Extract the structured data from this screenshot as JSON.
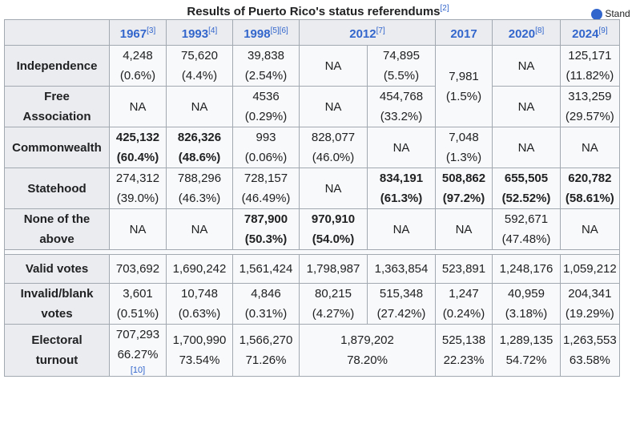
{
  "caption": {
    "title": "Results of Puerto Rico's status referendums",
    "ref": "[2]"
  },
  "side_button": {
    "label": "Stand"
  },
  "headers": [
    {
      "year": "1967",
      "ref": "[3]"
    },
    {
      "year": "1993",
      "ref": "[4]"
    },
    {
      "year": "1998",
      "ref": "[5][6]"
    },
    {
      "year": "2012",
      "ref": "[7]"
    },
    {
      "year": "2017",
      "ref": ""
    },
    {
      "year": "2020",
      "ref": "[8]"
    },
    {
      "year": "2024",
      "ref": "[9]"
    }
  ],
  "rows": {
    "independence": {
      "label": "Independence",
      "c1967": [
        "4,248",
        "(0.6%)"
      ],
      "c1993": [
        "75,620",
        "(4.4%)"
      ],
      "c1998": [
        "39,838",
        "(2.54%)"
      ],
      "c2012a": "NA",
      "c2012b": [
        "74,895",
        "(5.5%)"
      ],
      "c2017": [
        "7,981",
        "(1.5%)"
      ],
      "c2020": "NA",
      "c2024": [
        "125,171",
        "(11.82%)"
      ]
    },
    "free_association": {
      "label": [
        "Free",
        "Association"
      ],
      "c1967": "NA",
      "c1993": "NA",
      "c1998": [
        "4536",
        "(0.29%)"
      ],
      "c2012a": "NA",
      "c2012b": [
        "454,768",
        "(33.2%)"
      ],
      "c2020": "NA",
      "c2024": [
        "313,259",
        "(29.57%)"
      ]
    },
    "commonwealth": {
      "label": "Commonwealth",
      "c1967": [
        "425,132",
        "(60.4%)"
      ],
      "c1993": [
        "826,326",
        "(48.6%)"
      ],
      "c1998": [
        "993",
        "(0.06%)"
      ],
      "c2012a": [
        "828,077",
        "(46.0%)"
      ],
      "c2012b": "NA",
      "c2017": [
        "7,048",
        "(1.3%)"
      ],
      "c2020": "NA",
      "c2024": "NA"
    },
    "statehood": {
      "label": "Statehood",
      "c1967": [
        "274,312",
        "(39.0%)"
      ],
      "c1993": [
        "788,296",
        "(46.3%)"
      ],
      "c1998": [
        "728,157",
        "(46.49%)"
      ],
      "c2012a": "NA",
      "c2012b": [
        "834,191",
        "(61.3%)"
      ],
      "c2017": [
        "508,862",
        "(97.2%)"
      ],
      "c2020": [
        "655,505",
        "(52.52%)"
      ],
      "c2024": [
        "620,782",
        "(58.61%)"
      ]
    },
    "none": {
      "label": [
        "None of the",
        "above"
      ],
      "c1967": "NA",
      "c1993": "NA",
      "c1998": [
        "787,900",
        "(50.3%)"
      ],
      "c2012a": [
        "970,910",
        "(54.0%)"
      ],
      "c2012b": "NA",
      "c2017": "NA",
      "c2020": [
        "592,671",
        "(47.48%)"
      ],
      "c2024": "NA"
    },
    "valid": {
      "label": "Valid votes",
      "values": [
        "703,692",
        "1,690,242",
        "1,561,424",
        "1,798,987",
        "1,363,854",
        "523,891",
        "1,248,176",
        "1,059,212"
      ]
    },
    "invalid": {
      "label": [
        "Invalid/blank",
        "votes"
      ],
      "values": [
        [
          "3,601",
          "(0.51%)"
        ],
        [
          "10,748",
          "(0.63%)"
        ],
        [
          "4,846",
          "(0.31%)"
        ],
        [
          "80,215",
          "(4.27%)"
        ],
        [
          "515,348",
          "(27.42%)"
        ],
        [
          "1,247",
          "(0.24%)"
        ],
        [
          "40,959",
          "(3.18%)"
        ],
        [
          "204,341",
          "(19.29%)"
        ]
      ]
    },
    "turnout": {
      "label": [
        "Electoral",
        "turnout"
      ],
      "c1967": [
        "707,293",
        "66.27%",
        "[10]"
      ],
      "c1993": [
        "1,700,990",
        "73.54%"
      ],
      "c1998": [
        "1,566,270",
        "71.26%"
      ],
      "c2012": [
        "1,879,202",
        "78.20%"
      ],
      "c2017": [
        "525,138",
        "22.23%"
      ],
      "c2020": [
        "1,289,135",
        "54.72%"
      ],
      "c2024": [
        "1,263,553",
        "63.58%"
      ]
    }
  }
}
